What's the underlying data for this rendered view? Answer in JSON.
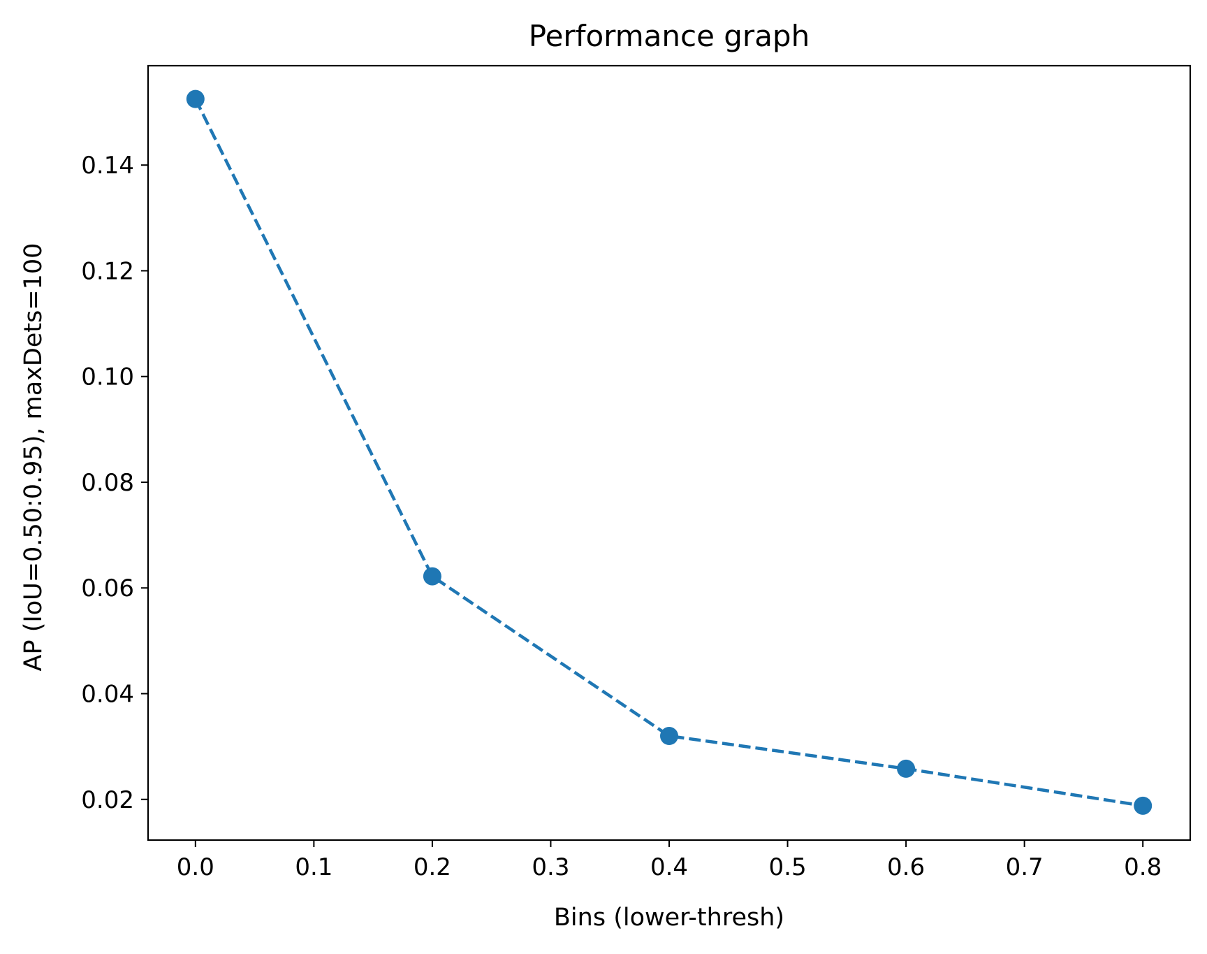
{
  "chart_data": {
    "type": "line",
    "title": "Performance graph",
    "xlabel": "Bins (lower-thresh)",
    "ylabel": "AP (IoU=0.50:0.95), maxDets=100",
    "xlim": [
      -0.04,
      0.84
    ],
    "ylim": [
      0.0123,
      0.1588
    ],
    "x_ticks": [
      "0.0",
      "0.1",
      "0.2",
      "0.3",
      "0.4",
      "0.5",
      "0.6",
      "0.7",
      "0.8"
    ],
    "y_ticks": [
      "0.02",
      "0.04",
      "0.06",
      "0.08",
      "0.10",
      "0.12",
      "0.14"
    ],
    "grid": false,
    "legend": false,
    "series": [
      {
        "color": "#1f77b4",
        "line_style": "dashed",
        "marker": "circle",
        "x": [
          0.0,
          0.2,
          0.4,
          0.6,
          0.8
        ],
        "y": [
          0.1525,
          0.0622,
          0.032,
          0.0258,
          0.0188
        ]
      }
    ]
  }
}
